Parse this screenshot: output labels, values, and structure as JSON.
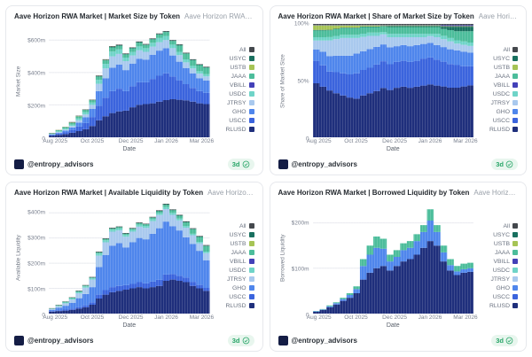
{
  "footer": {
    "handle": "@entropy_advisors",
    "badge": "3d"
  },
  "xaxis": {
    "label": "Date",
    "ticks": [
      {
        "label": "Aug 2025",
        "pos": 4
      },
      {
        "label": "Oct 2025",
        "pos": 27
      },
      {
        "label": "Dec 2025",
        "pos": 51
      },
      {
        "label": "Jan 2026",
        "pos": 73
      },
      {
        "label": "Mar 2026",
        "pos": 95
      }
    ]
  },
  "tokens": [
    {
      "key": "ALL",
      "label": "All",
      "color": "#44484d"
    },
    {
      "key": "USYC",
      "label": "USYC",
      "color": "#19705f"
    },
    {
      "key": "USTB",
      "label": "USTB",
      "color": "#a6c455"
    },
    {
      "key": "JAAA",
      "label": "JAAA",
      "color": "#4cbd9b"
    },
    {
      "key": "VBILL",
      "label": "VBILL",
      "color": "#4341b8"
    },
    {
      "key": "USDC",
      "label": "USDC",
      "color": "#6fd4c8"
    },
    {
      "key": "JTRSY",
      "label": "JTRSY",
      "color": "#a9c9ee"
    },
    {
      "key": "GHO",
      "label": "GHO",
      "color": "#4f86ec"
    },
    {
      "key": "USCC",
      "label": "USCC",
      "color": "#3b64dd"
    },
    {
      "key": "RLUSD",
      "label": "RLUSD",
      "color": "#1f2f7c"
    }
  ],
  "chart_data": [
    {
      "type": "area-stacked",
      "title": "Aave Horizon RWA Market | Market Size by Token",
      "subtitle": "Aave Horizon RWA: Liquidity Over Time by Tok...",
      "ylabel": "Market Size",
      "ymax": 700,
      "yticks": [
        {
          "v": 0,
          "label": "0"
        },
        {
          "v": 200,
          "label": "$200m"
        },
        {
          "v": 400,
          "label": "$400m"
        },
        {
          "v": 600,
          "label": "$600m"
        }
      ],
      "series": [
        {
          "token": "RLUSD",
          "values": [
            10,
            15,
            20,
            28,
            38,
            50,
            70,
            105,
            130,
            150,
            160,
            165,
            185,
            200,
            205,
            210,
            220,
            230,
            235,
            232,
            228,
            220,
            210,
            205
          ]
        },
        {
          "token": "USCC",
          "values": [
            4,
            8,
            12,
            18,
            28,
            38,
            55,
            90,
            115,
            135,
            140,
            120,
            130,
            140,
            135,
            150,
            160,
            165,
            140,
            120,
            100,
            85,
            75,
            70
          ]
        },
        {
          "token": "GHO",
          "values": [
            3,
            6,
            10,
            15,
            25,
            35,
            50,
            90,
            120,
            145,
            150,
            130,
            140,
            145,
            140,
            150,
            155,
            155,
            130,
            115,
            100,
            90,
            80,
            75
          ]
        },
        {
          "token": "JTRSY",
          "values": [
            2,
            4,
            6,
            9,
            14,
            18,
            25,
            45,
            60,
            70,
            65,
            55,
            50,
            52,
            48,
            50,
            52,
            50,
            45,
            40,
            35,
            30,
            28,
            26
          ]
        },
        {
          "token": "USDC",
          "values": [
            2,
            4,
            6,
            8,
            12,
            14,
            15,
            25,
            28,
            30,
            28,
            22,
            22,
            24,
            22,
            24,
            26,
            25,
            22,
            20,
            18,
            16,
            15,
            14
          ]
        },
        {
          "token": "JAAA",
          "values": [
            3,
            6,
            8,
            10,
            11,
            13,
            13,
            20,
            22,
            25,
            22,
            20,
            22,
            24,
            20,
            21,
            22,
            25,
            23,
            40,
            35,
            35,
            38,
            40
          ]
        },
        {
          "token": "USYC",
          "values": [
            1,
            1,
            1,
            2,
            2,
            2,
            2,
            3,
            3,
            4,
            4,
            3,
            3,
            3,
            3,
            3,
            3,
            3,
            3,
            4,
            3,
            3,
            3,
            3
          ]
        },
        {
          "token": "USTB",
          "values": [
            1,
            1,
            1,
            2,
            1,
            1,
            1,
            1,
            1,
            1,
            0,
            0,
            0,
            0,
            0,
            0,
            0,
            0,
            0,
            0,
            0,
            0,
            0,
            0
          ]
        },
        {
          "token": "ALL",
          "values": [
            1,
            1,
            1,
            2,
            2,
            2,
            2,
            3,
            3,
            3,
            3,
            3,
            3,
            3,
            3,
            3,
            3,
            3,
            3,
            3,
            3,
            3,
            3,
            3
          ]
        }
      ]
    },
    {
      "type": "area-stacked",
      "percent": true,
      "title": "Aave Horizon RWA Market | Share of Market Size by Token",
      "subtitle": "Aave Horizon RWA: Liquidity Over Ti...",
      "ylabel": "Share of Market Size",
      "ymax": 100,
      "yticks": [
        {
          "v": 0,
          "label": "0"
        },
        {
          "v": 50,
          "label": "50%"
        },
        {
          "v": 100,
          "label": "100%"
        }
      ],
      "series": [
        {
          "token": "RLUSD",
          "values": [
            48,
            45,
            42,
            40,
            38,
            36,
            35,
            38,
            40,
            42,
            44,
            42,
            44,
            45,
            44,
            45,
            46,
            47,
            46,
            45,
            44,
            44,
            45,
            46
          ]
        },
        {
          "token": "USCC",
          "values": [
            20,
            19,
            17,
            19,
            20,
            21,
            23,
            23,
            23,
            24,
            24,
            23,
            23,
            23,
            23,
            23,
            24,
            24,
            23,
            22,
            21,
            20,
            18,
            17
          ]
        },
        {
          "token": "GHO",
          "values": [
            10,
            12,
            14,
            15,
            16,
            17,
            18,
            17,
            17,
            16,
            15,
            15,
            14,
            14,
            14,
            14,
            13,
            13,
            13,
            13,
            13,
            13,
            13,
            12
          ]
        },
        {
          "token": "JTRSY",
          "values": [
            8,
            10,
            14,
            15,
            16,
            16,
            14,
            13,
            12,
            10,
            9,
            9,
            8,
            7,
            8,
            7,
            6,
            6,
            7,
            7,
            7,
            6,
            6,
            6
          ]
        },
        {
          "token": "USDC",
          "values": [
            3,
            3,
            3,
            3,
            3,
            3,
            3,
            3,
            3,
            3,
            2,
            3,
            3,
            3,
            3,
            3,
            3,
            2,
            3,
            3,
            3,
            3,
            3,
            3
          ]
        },
        {
          "token": "JAAA",
          "values": [
            6,
            6,
            6,
            6,
            6,
            6,
            6,
            6,
            5,
            5,
            5,
            6,
            6,
            6,
            6,
            6,
            6,
            6,
            6,
            6,
            7,
            8,
            9,
            10
          ]
        },
        {
          "token": "USYC",
          "values": [
            0.5,
            0.5,
            0.5,
            0.5,
            0.5,
            0.5,
            0.5,
            0.5,
            0.5,
            0.5,
            0.5,
            1,
            1,
            1,
            1,
            1,
            1,
            1,
            1,
            2,
            3,
            4,
            4,
            4
          ]
        },
        {
          "token": "USTB",
          "values": [
            4,
            4,
            4,
            3,
            2,
            2,
            2,
            1,
            1,
            1,
            0.5,
            0.5,
            0.5,
            0.5,
            0.5,
            0.5,
            0.5,
            0.5,
            0.5,
            0.5,
            0.5,
            0.5,
            0.5,
            0.5
          ]
        },
        {
          "token": "VBILL",
          "values": [
            0.3,
            0.3,
            0.3,
            0.3,
            0.3,
            0.3,
            0.3,
            0.3,
            0.3,
            0.3,
            0.3,
            0.3,
            0.3,
            0.3,
            0.3,
            0.3,
            0.3,
            0.3,
            0.3,
            1,
            1,
            1,
            1,
            1
          ]
        },
        {
          "token": "ALL",
          "values": [
            1,
            1,
            1,
            1,
            1,
            1,
            1,
            1,
            1,
            1,
            1,
            1,
            1,
            1,
            1,
            1,
            1,
            1,
            1,
            1,
            1,
            1,
            1,
            1
          ]
        }
      ]
    },
    {
      "type": "area-stacked",
      "title": "Aave Horizon RWA Market | Available Liquidity by Token",
      "subtitle": "Aave Horizon RWA: Liquidity Over Time ...",
      "ylabel": "Available Liquidity",
      "ymax": 450,
      "yticks": [
        {
          "v": 0,
          "label": "0"
        },
        {
          "v": 100,
          "label": "$100m"
        },
        {
          "v": 200,
          "label": "$200m"
        },
        {
          "v": 300,
          "label": "$300m"
        },
        {
          "v": 400,
          "label": "$400m"
        }
      ],
      "series": [
        {
          "token": "RLUSD",
          "values": [
            8,
            10,
            12,
            15,
            20,
            25,
            35,
            60,
            75,
            85,
            90,
            95,
            100,
            105,
            100,
            105,
            110,
            130,
            135,
            130,
            125,
            110,
            100,
            90
          ]
        },
        {
          "token": "USCC",
          "values": [
            2,
            3,
            4,
            5,
            6,
            8,
            10,
            15,
            18,
            20,
            20,
            18,
            18,
            20,
            20,
            22,
            24,
            25,
            22,
            20,
            18,
            16,
            14,
            12
          ]
        },
        {
          "token": "GHO",
          "values": [
            5,
            10,
            15,
            22,
            35,
            45,
            60,
            110,
            140,
            165,
            170,
            150,
            165,
            175,
            175,
            190,
            205,
            210,
            190,
            180,
            160,
            150,
            135,
            110
          ]
        },
        {
          "token": "JTRSY",
          "values": [
            3,
            6,
            10,
            14,
            20,
            25,
            30,
            45,
            50,
            55,
            50,
            42,
            42,
            45,
            45,
            50,
            52,
            50,
            45,
            40,
            38,
            35,
            30,
            28
          ]
        },
        {
          "token": "USDC",
          "values": [
            1,
            2,
            3,
            4,
            5,
            5,
            5,
            8,
            8,
            8,
            8,
            7,
            7,
            8,
            8,
            8,
            8,
            8,
            8,
            7,
            7,
            6,
            6,
            6
          ]
        },
        {
          "token": "JAAA",
          "values": [
            1,
            2,
            3,
            3,
            3,
            3,
            3,
            5,
            5,
            5,
            5,
            5,
            5,
            6,
            6,
            6,
            7,
            9,
            10,
            11,
            14,
            18,
            19,
            22
          ]
        },
        {
          "token": "USYC",
          "values": [
            0.5,
            0.5,
            0.5,
            0.5,
            0.5,
            0.5,
            0.5,
            1,
            1,
            1,
            1,
            1,
            1,
            1,
            1,
            1,
            2,
            2,
            2,
            2,
            2,
            2,
            2,
            2
          ]
        },
        {
          "token": "ALL",
          "values": [
            1,
            1,
            1,
            1,
            2,
            2,
            2,
            2,
            2,
            2,
            2,
            2,
            2,
            2,
            2,
            2,
            2,
            2,
            2,
            2,
            2,
            2,
            2,
            2
          ]
        }
      ]
    },
    {
      "type": "area-stacked",
      "title": "Aave Horizon RWA Market | Borrowed Liquidity by Token",
      "subtitle": "Aave Horizon RWA: Liquidity Over Time ...",
      "ylabel": "Borrowed Liquidity",
      "ymax": 250,
      "yticks": [
        {
          "v": 0,
          "label": "0"
        },
        {
          "v": 100,
          "label": "$100m"
        },
        {
          "v": 200,
          "label": "$200m"
        }
      ],
      "series": [
        {
          "token": "RLUSD",
          "values": [
            4,
            8,
            14,
            20,
            28,
            35,
            45,
            75,
            90,
            100,
            105,
            95,
            105,
            115,
            120,
            130,
            145,
            160,
            150,
            115,
            95,
            85,
            90,
            92
          ]
        },
        {
          "token": "GHO",
          "values": [
            1,
            1,
            2,
            3,
            4,
            6,
            9,
            30,
            40,
            45,
            38,
            20,
            20,
            25,
            25,
            30,
            35,
            45,
            30,
            20,
            12,
            8,
            8,
            8
          ]
        },
        {
          "token": "JAAA",
          "values": [
            0.5,
            1,
            2,
            2,
            3,
            4,
            6,
            15,
            20,
            25,
            22,
            15,
            15,
            15,
            15,
            15,
            15,
            25,
            15,
            15,
            13,
            12,
            12,
            12
          ]
        }
      ]
    }
  ]
}
